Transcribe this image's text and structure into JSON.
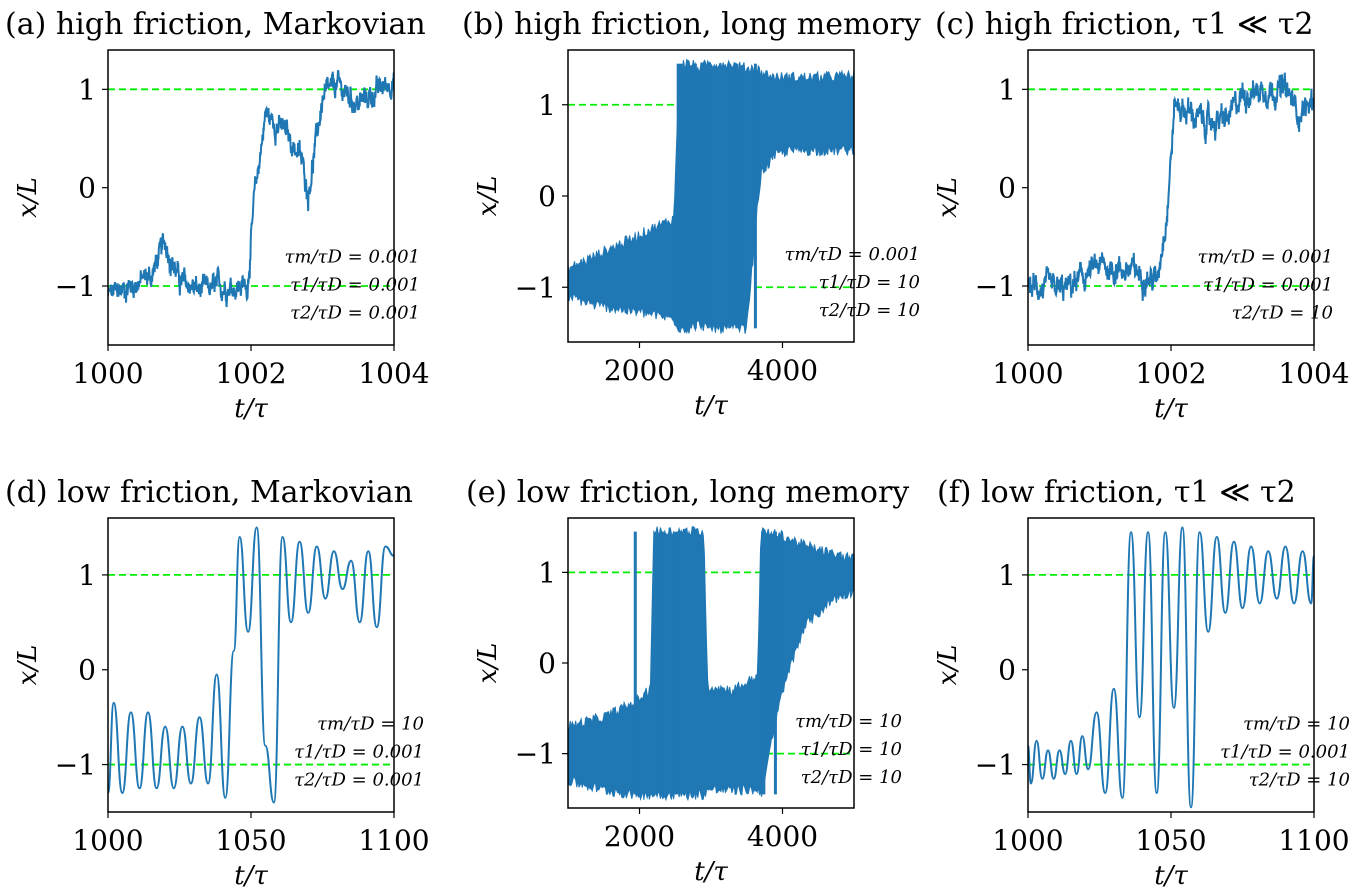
{
  "figure": {
    "series_color": "#1f77b4",
    "reference_color": "#00ee00"
  },
  "chart_data": [
    {
      "type": "line",
      "panel": "(a)",
      "title": "high friction, Markovian",
      "xlabel": "t/τ_D",
      "ylabel": "x/L",
      "xlim": [
        1000,
        1004
      ],
      "ylim": [
        -1.6,
        1.4
      ],
      "xticks": [
        "1000",
        "1002",
        "1004"
      ],
      "yticks": [
        "1",
        "0",
        "−1"
      ],
      "reference_lines": [
        1,
        -1
      ],
      "annotations": [
        "τ_m/τ_D = 0.001",
        "τ_1/τ_D = 0.001",
        "τ_2/τ_D = 0.001"
      ],
      "series": [
        {
          "style": "noisy",
          "amplitude": 0.13,
          "x": [
            1000,
            1000.3,
            1000.6,
            1000.8,
            1001,
            1001.3,
            1001.6,
            1001.95,
            1002.05,
            1002.2,
            1002.5,
            1002.7,
            1002.8,
            1003.0,
            1003.2,
            1003.5,
            1003.8,
            1004
          ],
          "y": [
            -1.1,
            -1.0,
            -0.9,
            -0.55,
            -0.95,
            -1.05,
            -1.0,
            -1.0,
            -0.1,
            0.75,
            0.55,
            0.3,
            -0.05,
            0.9,
            1.05,
            0.85,
            1.0,
            1.1
          ]
        }
      ]
    },
    {
      "type": "line",
      "panel": "(b)",
      "title": "high friction, long memory",
      "xlabel": "t/τ_D",
      "ylabel": "x/L",
      "xlim": [
        1000,
        5000
      ],
      "ylim": [
        -1.6,
        1.6
      ],
      "xticks": [
        "2000",
        "4000"
      ],
      "yticks": [
        "1",
        "0",
        "−1"
      ],
      "reference_lines": [
        1,
        -1
      ],
      "annotations": [
        "τ_m/τ_D = 0.001",
        "τ_1/τ_D = 10",
        "τ_2/τ_D = 10"
      ],
      "series": [
        {
          "style": "band",
          "x": [
            1000,
            1400,
            1800,
            2200,
            2480,
            2560,
            2700,
            2850,
            2950,
            3200,
            3500,
            3640,
            3700,
            3900,
            4100,
            4500,
            5000
          ],
          "lo": [
            -1.1,
            -1.2,
            -1.25,
            -1.3,
            -1.35,
            -1.45,
            -1.45,
            -1.4,
            -1.45,
            -1.45,
            -1.45,
            -0.2,
            0.25,
            0.45,
            0.5,
            0.5,
            0.5
          ],
          "hi": [
            -0.8,
            -0.65,
            -0.5,
            -0.35,
            -0.25,
            1.45,
            1.45,
            1.4,
            1.45,
            1.45,
            1.4,
            1.4,
            1.35,
            1.3,
            1.3,
            1.3,
            1.32
          ],
          "spikes": [
            [
              2520,
              2600
            ],
            [
              2760,
              2800
            ],
            [
              2940,
              2960
            ],
            [
              3240,
              3260
            ],
            [
              3340,
              3360
            ],
            [
              3600,
              3640
            ]
          ]
        }
      ]
    },
    {
      "type": "line",
      "panel": "(c)",
      "title": "high friction, τ_1 ≪ τ_2",
      "xlabel": "t/τ_D",
      "ylabel": "x/L",
      "xlim": [
        1000,
        1004
      ],
      "ylim": [
        -1.6,
        1.4
      ],
      "xticks": [
        "1000",
        "1002",
        "1004"
      ],
      "yticks": [
        "1",
        "0",
        "−1"
      ],
      "reference_lines": [
        1,
        -1
      ],
      "annotations": [
        "τ_m/τ_D = 0.001",
        "τ_1/τ_D = 0.001",
        "τ_2/τ_D = 10"
      ],
      "series": [
        {
          "style": "noisy",
          "amplitude": 0.14,
          "x": [
            1000,
            1000.5,
            1001,
            1001.5,
            1001.8,
            1001.95,
            1002.05,
            1002.3,
            1002.5,
            1002.8,
            1003.0,
            1003.3,
            1003.6,
            1003.8,
            1004
          ],
          "y": [
            -1.0,
            -1.05,
            -0.8,
            -0.85,
            -0.95,
            -0.2,
            0.85,
            0.75,
            0.65,
            0.7,
            0.95,
            1.0,
            1.0,
            0.75,
            0.9
          ]
        }
      ]
    },
    {
      "type": "line",
      "panel": "(d)",
      "title": "low friction, Markovian",
      "xlabel": "t/τ_D",
      "ylabel": "x/L",
      "xlim": [
        1000,
        1100
      ],
      "ylim": [
        -1.5,
        1.6
      ],
      "xticks": [
        "1000",
        "1050",
        "1100"
      ],
      "yticks": [
        "1",
        "0",
        "−1"
      ],
      "reference_lines": [
        1,
        -1
      ],
      "annotations": [
        "τ_m/τ_D = 10",
        "τ_1/τ_D = 0.001",
        "τ_2/τ_D = 0.001"
      ],
      "series": [
        {
          "style": "smooth",
          "x": [
            1000,
            1002,
            1005,
            1008,
            1011,
            1014,
            1017,
            1020,
            1023,
            1026,
            1029,
            1032,
            1035,
            1038,
            1041,
            1044,
            1046,
            1049,
            1052,
            1055,
            1058,
            1061,
            1064,
            1067,
            1070,
            1073,
            1076,
            1079,
            1082,
            1085,
            1088,
            1091,
            1094,
            1097,
            1100
          ],
          "y": [
            -1.3,
            -0.35,
            -1.3,
            -0.45,
            -1.25,
            -0.45,
            -1.25,
            -0.6,
            -1.25,
            -0.6,
            -1.2,
            -0.5,
            -1.2,
            -0.05,
            -1.35,
            0.2,
            1.4,
            0.4,
            1.5,
            -0.8,
            -1.4,
            1.4,
            0.5,
            1.35,
            0.6,
            1.3,
            0.75,
            1.25,
            0.85,
            1.15,
            0.5,
            1.25,
            0.45,
            1.3,
            1.2
          ]
        }
      ]
    },
    {
      "type": "line",
      "panel": "(e)",
      "title": "low friction, long memory",
      "xlabel": "t/τ_D",
      "ylabel": "x/L",
      "xlim": [
        1000,
        5000
      ],
      "ylim": [
        -1.6,
        1.6
      ],
      "xticks": [
        "2000",
        "4000"
      ],
      "yticks": [
        "1",
        "0",
        "−1"
      ],
      "reference_lines": [
        1,
        -1
      ],
      "annotations": [
        "τ_m/τ_D = 10",
        "τ_1/τ_D = 10",
        "τ_2/τ_D = 10"
      ],
      "series": [
        {
          "style": "band",
          "x": [
            1000,
            1500,
            1900,
            2150,
            2200,
            2900,
            2950,
            3300,
            3650,
            3700,
            4000,
            4300,
            4700,
            5000
          ],
          "lo": [
            -1.3,
            -1.4,
            -1.45,
            -1.45,
            -1.45,
            -1.45,
            -1.4,
            -1.4,
            -1.4,
            -1.45,
            -0.3,
            0.4,
            0.7,
            0.8
          ],
          "hi": [
            -0.7,
            -0.6,
            -0.45,
            -0.3,
            1.45,
            1.45,
            -0.25,
            -0.3,
            -0.15,
            1.45,
            1.4,
            1.3,
            1.2,
            1.15
          ],
          "spikes": [
            [
              1920,
              1960
            ],
            [
              2300,
              2340
            ],
            [
              2500,
              2540
            ],
            [
              3700,
              3760
            ],
            [
              3880,
              3920
            ]
          ]
        }
      ]
    },
    {
      "type": "line",
      "panel": "(f)",
      "title": "low friction, τ_1 ≪ τ_2",
      "xlabel": "t/τ_D",
      "ylabel": "x/L",
      "xlim": [
        1000,
        1100
      ],
      "ylim": [
        -1.5,
        1.6
      ],
      "xticks": [
        "1000",
        "1050",
        "1100"
      ],
      "yticks": [
        "1",
        "0",
        "−1"
      ],
      "reference_lines": [
        1,
        -1
      ],
      "annotations": [
        "τ_m/τ_D = 10",
        "τ_1/τ_D = 0.001",
        "τ_2/τ_D = 10"
      ],
      "series": [
        {
          "style": "smooth",
          "x": [
            1000,
            1001,
            1003,
            1005,
            1007,
            1009,
            1011,
            1013,
            1015,
            1017,
            1019,
            1021,
            1024,
            1027,
            1030,
            1033,
            1036,
            1039,
            1042,
            1045,
            1048,
            1051,
            1054,
            1057,
            1060,
            1063,
            1066,
            1069,
            1072,
            1075,
            1078,
            1081,
            1084,
            1087,
            1090,
            1093,
            1096,
            1099,
            1100
          ],
          "y": [
            -0.8,
            -1.2,
            -0.75,
            -1.15,
            -0.85,
            -1.15,
            -0.85,
            -1.1,
            -0.75,
            -1.1,
            -0.7,
            -1.05,
            -0.45,
            -1.3,
            -0.2,
            -1.35,
            1.45,
            -0.5,
            1.45,
            -1.3,
            1.45,
            -0.4,
            1.5,
            -1.45,
            1.45,
            0.4,
            1.4,
            0.6,
            1.35,
            0.65,
            1.3,
            0.7,
            1.25,
            0.75,
            1.3,
            0.7,
            1.25,
            0.7,
            1.2
          ]
        }
      ]
    }
  ]
}
